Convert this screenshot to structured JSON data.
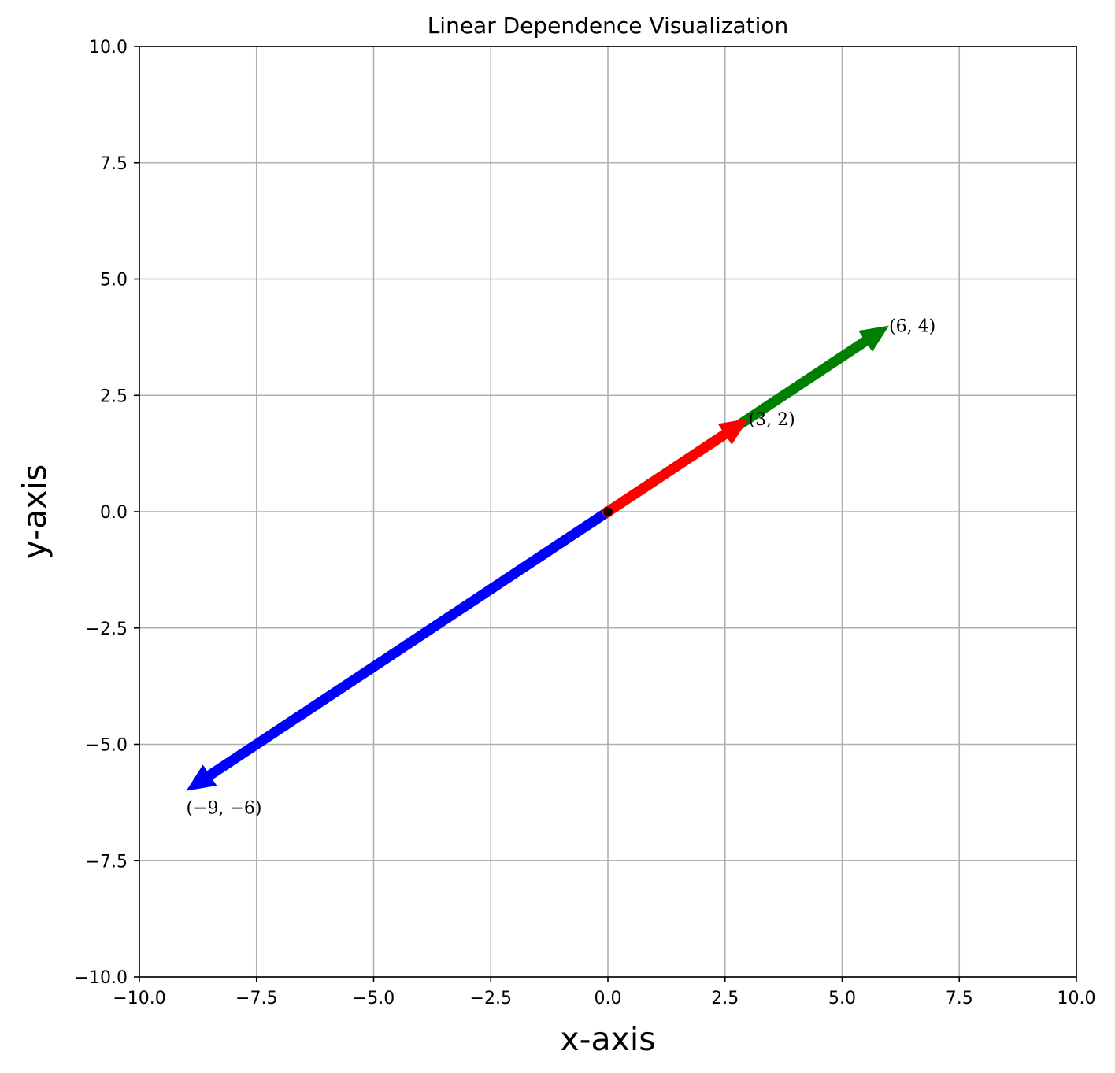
{
  "chart_data": {
    "type": "vector",
    "title": "Linear Dependence Visualization",
    "xlabel": "x-axis",
    "ylabel": "y-axis",
    "xlim": [
      -10,
      10
    ],
    "ylim": [
      -10,
      10
    ],
    "xticks": [
      -10,
      -7.5,
      -5,
      -2.5,
      0,
      2.5,
      5,
      7.5,
      10
    ],
    "yticks": [
      -10,
      -7.5,
      -5,
      -2.5,
      0,
      2.5,
      5,
      7.5,
      10
    ],
    "xtick_labels": [
      "−10.0",
      "−7.5",
      "−5.0",
      "−2.5",
      "0.0",
      "2.5",
      "5.0",
      "7.5",
      "10.0"
    ],
    "ytick_labels": [
      "−10.0",
      "−7.5",
      "−5.0",
      "−2.5",
      "0.0",
      "2.5",
      "5.0",
      "7.5",
      "10.0"
    ],
    "grid": true,
    "origin": [
      0,
      0
    ],
    "vectors": [
      {
        "x": 6,
        "y": 4,
        "color": "#008000",
        "label": "(6, 4)"
      },
      {
        "x": 3,
        "y": 2,
        "color": "#ff0000",
        "label": "(3, 2)"
      },
      {
        "x": -9,
        "y": -6,
        "color": "#0000ff",
        "label": "(−9, −6)"
      }
    ]
  }
}
